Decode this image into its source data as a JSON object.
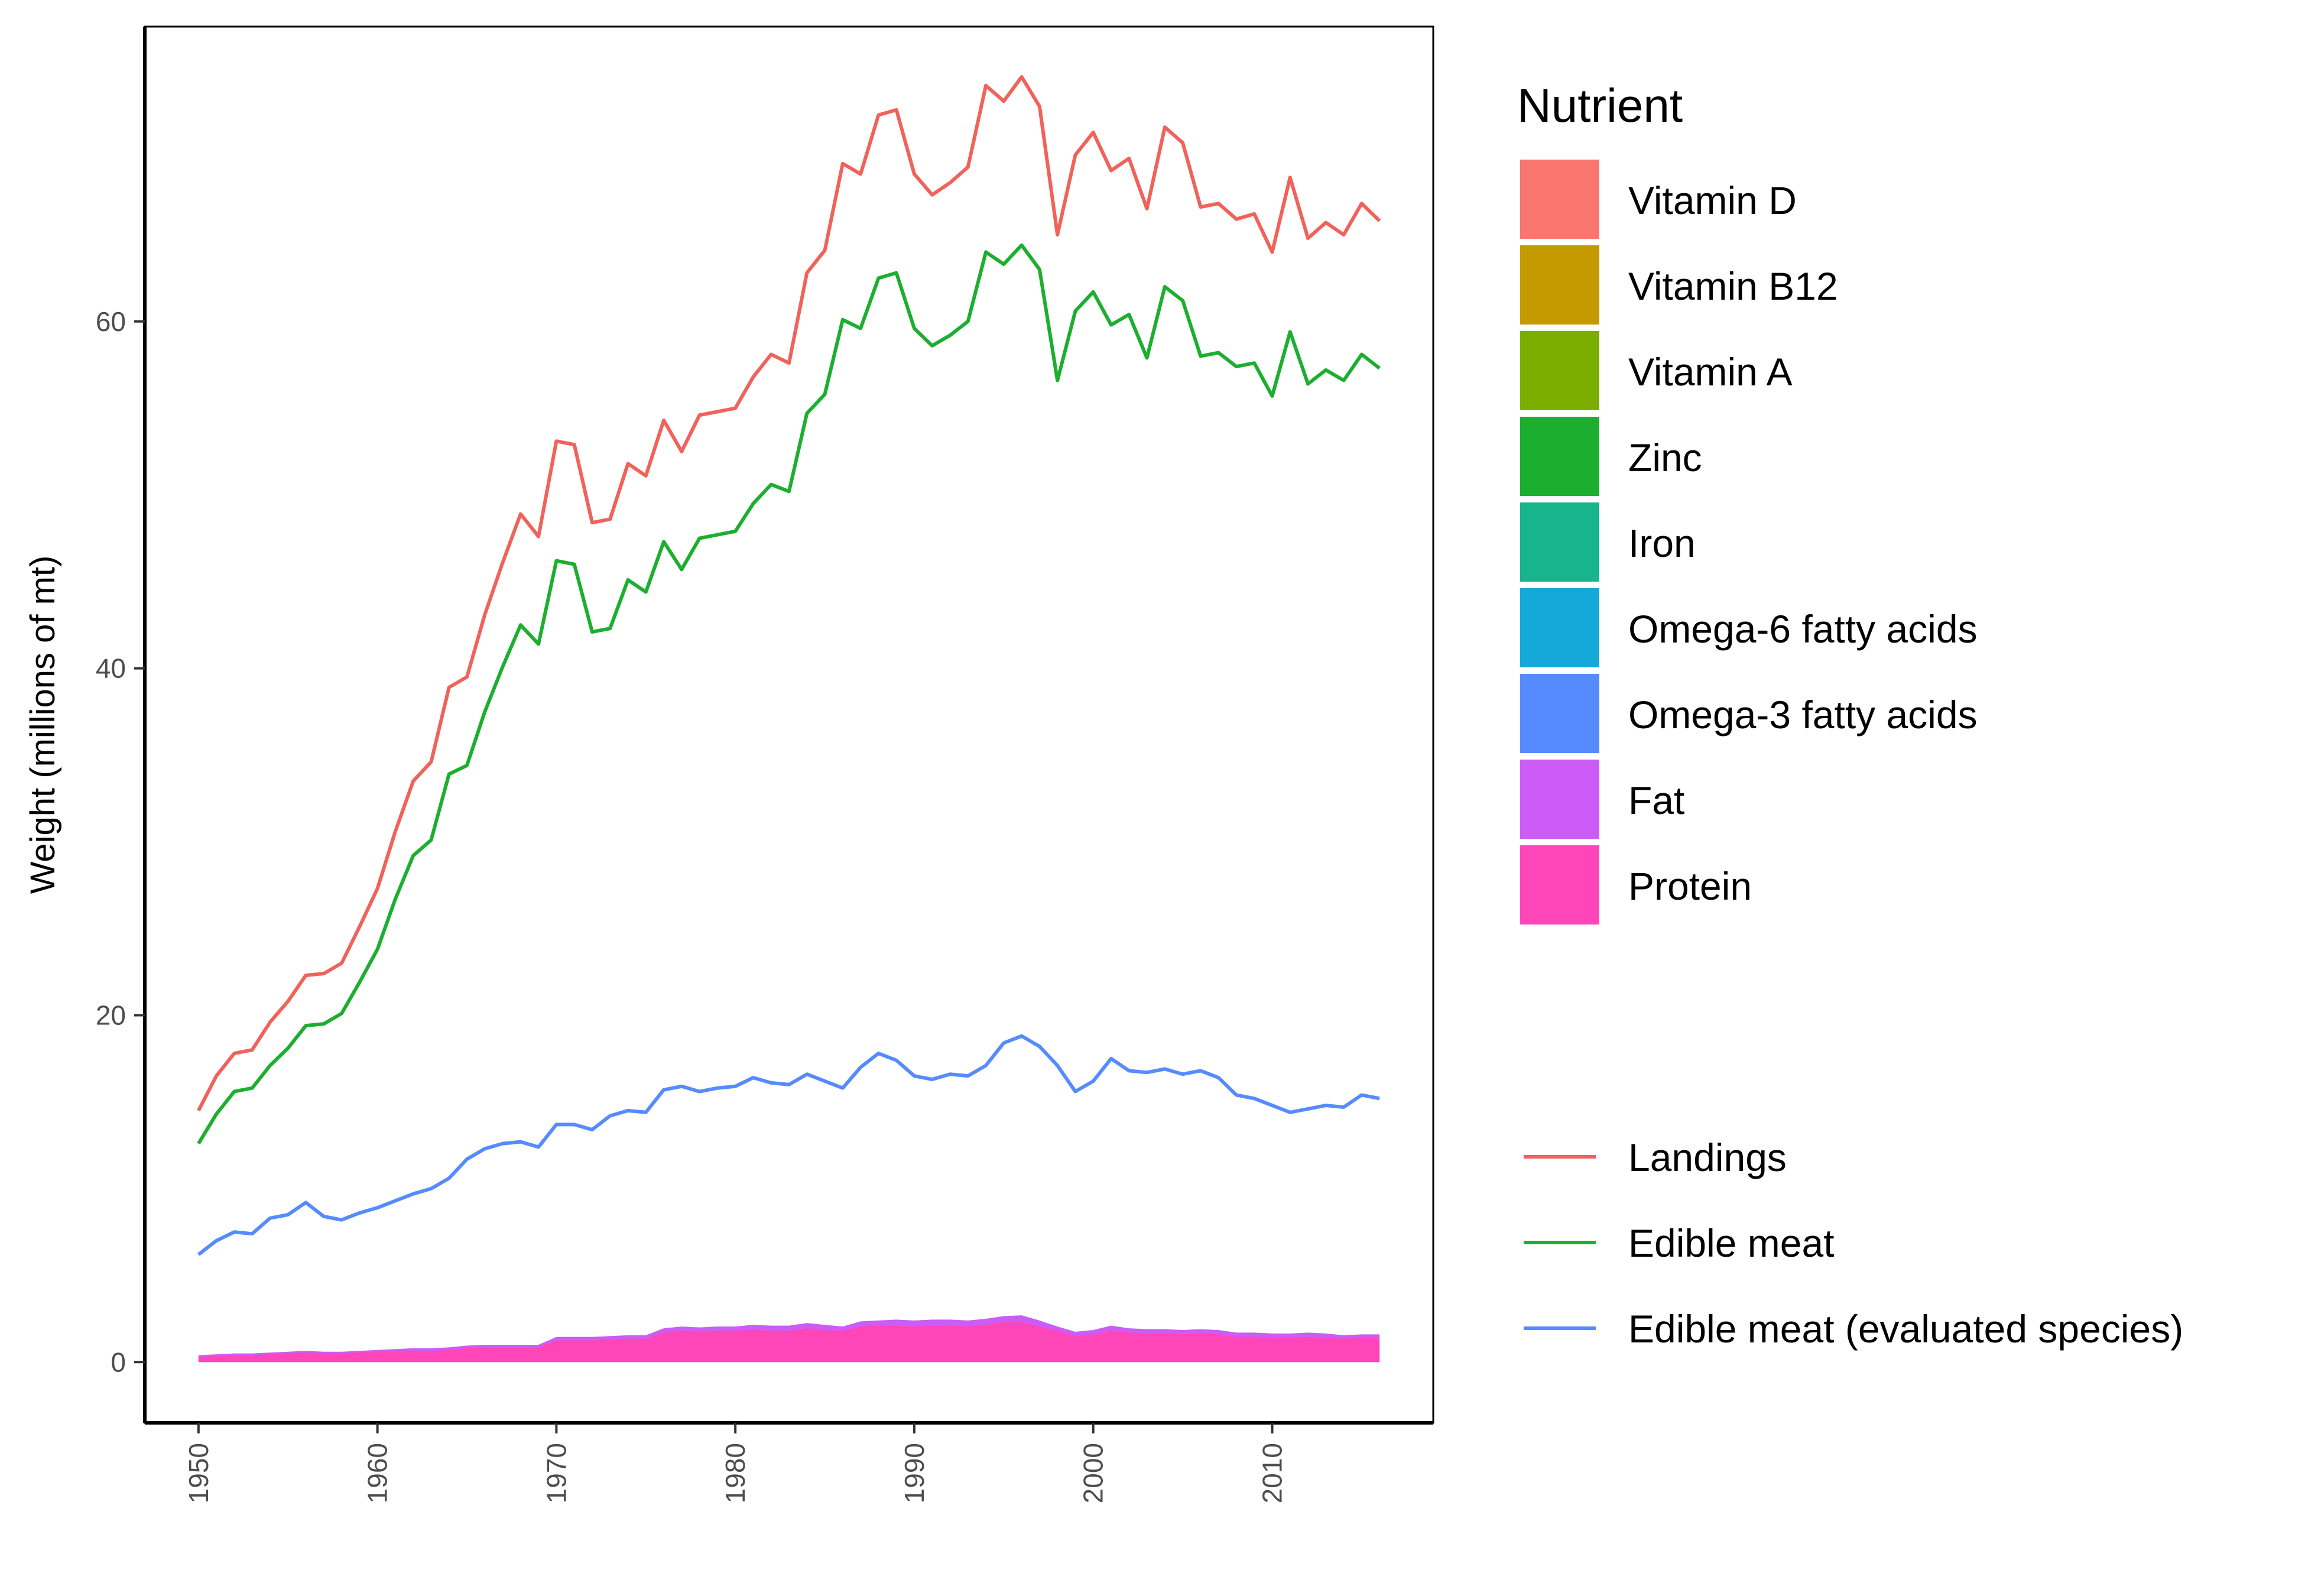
{
  "chart_data": {
    "type": "line",
    "ylabel": "Weight (millions of mt)",
    "xlim": [
      1947,
      2019
    ],
    "ylim": [
      -3.5,
      77
    ],
    "x_ticks": [
      1950,
      1960,
      1970,
      1980,
      1990,
      2000,
      2010
    ],
    "y_ticks": [
      0,
      20,
      40,
      60
    ],
    "x_tick_labels": [
      "1950",
      "1960",
      "1970",
      "1980",
      "1990",
      "2000",
      "2010"
    ],
    "y_tick_labels": [
      "0",
      "20",
      "40",
      "60"
    ],
    "x_tick_rotation": "vertical",
    "grid": false,
    "legend_fill_title": "Nutrient",
    "legend_placement": "right",
    "nutrients": [
      {
        "name": "Vitamin D",
        "color": "#F8766D"
      },
      {
        "name": "Vitamin B12",
        "color": "#C49A00"
      },
      {
        "name": "Vitamin A",
        "color": "#7CAE00"
      },
      {
        "name": "Zinc",
        "color": "#1CAF2F"
      },
      {
        "name": "Iron",
        "color": "#18B58C"
      },
      {
        "name": "Omega-6 fatty acids",
        "color": "#14A9D9"
      },
      {
        "name": "Omega-3 fatty acids",
        "color": "#568BFF"
      },
      {
        "name": "Fat",
        "color": "#CC5CF5"
      },
      {
        "name": "Protein",
        "color": "#FF46B9"
      }
    ],
    "x": [
      1950,
      1951,
      1952,
      1953,
      1954,
      1955,
      1956,
      1957,
      1958,
      1959,
      1960,
      1961,
      1962,
      1963,
      1964,
      1965,
      1966,
      1967,
      1968,
      1969,
      1970,
      1971,
      1972,
      1973,
      1974,
      1975,
      1976,
      1977,
      1978,
      1979,
      1980,
      1981,
      1982,
      1983,
      1984,
      1985,
      1986,
      1987,
      1988,
      1989,
      1990,
      1991,
      1992,
      1993,
      1994,
      1995,
      1996,
      1997,
      1998,
      1999,
      2000,
      2001,
      2002,
      2003,
      2004,
      2005,
      2006,
      2007,
      2008,
      2009,
      2010,
      2011,
      2012,
      2013,
      2014,
      2015,
      2016
    ],
    "series": [
      {
        "name": "Landings",
        "color": "#F0625A",
        "values": [
          14.5,
          16.5,
          17.8,
          18.0,
          19.6,
          20.8,
          22.3,
          22.4,
          23.0,
          25.1,
          27.3,
          30.6,
          33.5,
          34.6,
          38.9,
          39.5,
          43.1,
          46.1,
          48.9,
          47.6,
          53.1,
          52.9,
          48.4,
          48.6,
          51.8,
          51.1,
          54.3,
          52.5,
          54.6,
          54.8,
          55.0,
          56.8,
          58.1,
          57.6,
          62.8,
          64.1,
          69.1,
          68.5,
          71.9,
          72.2,
          68.5,
          67.3,
          68.0,
          68.9,
          73.6,
          72.7,
          74.1,
          72.4,
          65.0,
          69.6,
          70.9,
          68.7,
          69.4,
          66.5,
          71.2,
          70.3,
          66.6,
          66.8,
          65.9,
          66.2,
          64.0,
          68.3,
          64.8,
          65.7,
          65.0,
          66.8,
          65.8
        ]
      },
      {
        "name": "Edible meat",
        "color": "#1CAF2F",
        "values": [
          12.6,
          14.3,
          15.6,
          15.8,
          17.1,
          18.1,
          19.4,
          19.5,
          20.1,
          21.9,
          23.8,
          26.7,
          29.2,
          30.1,
          33.9,
          34.4,
          37.5,
          40.1,
          42.5,
          41.4,
          46.2,
          46.0,
          42.1,
          42.3,
          45.1,
          44.4,
          47.3,
          45.7,
          47.5,
          47.7,
          47.9,
          49.5,
          50.6,
          50.2,
          54.7,
          55.8,
          60.1,
          59.6,
          62.5,
          62.8,
          59.6,
          58.6,
          59.2,
          60.0,
          64.0,
          63.3,
          64.4,
          63.0,
          56.6,
          60.6,
          61.7,
          59.8,
          60.4,
          57.9,
          62.0,
          61.2,
          58.0,
          58.2,
          57.4,
          57.6,
          55.7,
          59.4,
          56.4,
          57.2,
          56.6,
          58.1,
          57.3
        ]
      },
      {
        "name": "Edible meat (evaluated species)",
        "color": "#568BFF",
        "values": [
          6.2,
          7.0,
          7.5,
          7.4,
          8.3,
          8.5,
          9.2,
          8.4,
          8.2,
          8.6,
          8.9,
          9.3,
          9.7,
          10.0,
          10.6,
          11.7,
          12.3,
          12.6,
          12.7,
          12.4,
          13.7,
          13.7,
          13.4,
          14.2,
          14.5,
          14.4,
          15.7,
          15.9,
          15.6,
          15.8,
          15.9,
          16.4,
          16.1,
          16.0,
          16.6,
          16.2,
          15.8,
          17.0,
          17.8,
          17.4,
          16.5,
          16.3,
          16.6,
          16.5,
          17.1,
          18.4,
          18.8,
          18.2,
          17.1,
          15.6,
          16.2,
          17.5,
          16.8,
          16.7,
          16.9,
          16.6,
          16.8,
          16.4,
          15.4,
          15.2,
          14.8,
          14.4,
          14.6,
          14.8,
          14.7,
          15.4,
          15.2
        ]
      }
    ],
    "areas": [
      {
        "name": "Fat",
        "color": "#CC5CF5",
        "values": [
          0.4,
          0.45,
          0.5,
          0.5,
          0.55,
          0.6,
          0.65,
          0.6,
          0.6,
          0.65,
          0.7,
          0.75,
          0.8,
          0.8,
          0.85,
          0.95,
          1.0,
          1.0,
          1.0,
          1.0,
          1.45,
          1.45,
          1.45,
          1.5,
          1.55,
          1.55,
          1.95,
          2.05,
          2.0,
          2.05,
          2.05,
          2.15,
          2.1,
          2.1,
          2.25,
          2.15,
          2.05,
          2.35,
          2.4,
          2.45,
          2.4,
          2.45,
          2.45,
          2.4,
          2.5,
          2.65,
          2.7,
          2.4,
          2.05,
          1.75,
          1.85,
          2.1,
          1.95,
          1.9,
          1.9,
          1.85,
          1.9,
          1.85,
          1.7,
          1.7,
          1.65,
          1.65,
          1.7,
          1.65,
          1.55,
          1.6,
          1.6
        ]
      },
      {
        "name": "Protein",
        "color": "#FF46B9",
        "values": [
          0.3,
          0.35,
          0.4,
          0.4,
          0.45,
          0.5,
          0.55,
          0.5,
          0.5,
          0.55,
          0.6,
          0.65,
          0.65,
          0.65,
          0.7,
          0.8,
          0.85,
          0.85,
          0.85,
          0.85,
          1.25,
          1.25,
          1.25,
          1.3,
          1.35,
          1.35,
          1.7,
          1.8,
          1.75,
          1.8,
          1.8,
          1.85,
          1.8,
          1.8,
          1.95,
          1.85,
          1.8,
          2.05,
          2.1,
          2.1,
          2.05,
          2.1,
          2.1,
          2.05,
          2.15,
          2.3,
          2.3,
          2.05,
          1.8,
          1.5,
          1.6,
          1.8,
          1.7,
          1.65,
          1.65,
          1.6,
          1.65,
          1.6,
          1.45,
          1.45,
          1.4,
          1.4,
          1.45,
          1.4,
          1.35,
          1.4,
          1.4
        ]
      }
    ]
  }
}
